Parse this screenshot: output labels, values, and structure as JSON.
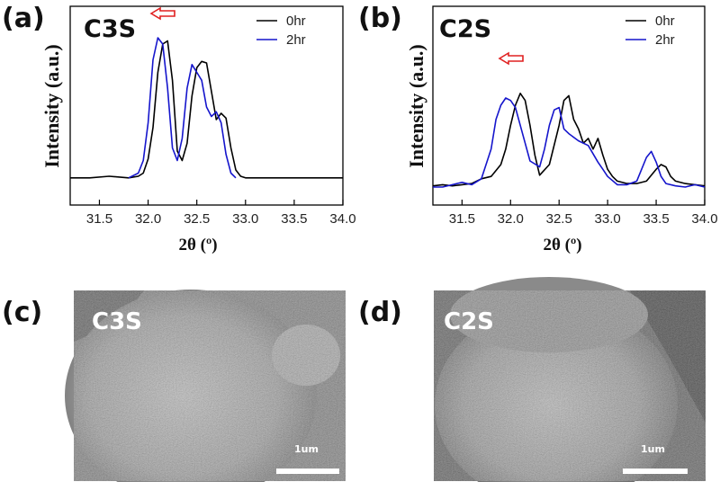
{
  "chart_data": [
    {
      "panel": "(a)",
      "type": "line",
      "title": "C3S",
      "xlabel": "2θ (º)",
      "ylabel": "Intensity (a.u.)",
      "xlim": [
        31.2,
        34.0
      ],
      "ylim": [
        0,
        100
      ],
      "xticks": [
        "31.5",
        "32.0",
        "32.5",
        "33.0",
        "33.5",
        "34.0"
      ],
      "legend": "top-right",
      "annotation": "left-arrow",
      "series": [
        {
          "name": "0hr",
          "color": "#000000",
          "x": [
            31.2,
            31.4,
            31.6,
            31.8,
            31.9,
            31.95,
            32.0,
            32.05,
            32.1,
            32.15,
            32.2,
            32.25,
            32.3,
            32.35,
            32.4,
            32.45,
            32.5,
            32.55,
            32.6,
            32.65,
            32.7,
            32.75,
            32.8,
            32.85,
            32.9,
            32.95,
            33.0,
            33.2,
            33.4,
            33.6,
            33.8,
            34.0
          ],
          "y": [
            3,
            3,
            4,
            3,
            4,
            6,
            15,
            35,
            70,
            88,
            90,
            65,
            20,
            14,
            25,
            55,
            73,
            77,
            76,
            58,
            40,
            44,
            41,
            22,
            8,
            4,
            3,
            3,
            3,
            3,
            3,
            3
          ]
        },
        {
          "name": "2hr",
          "color": "#1515cc",
          "x": [
            31.8,
            31.9,
            31.95,
            32.0,
            32.05,
            32.1,
            32.15,
            32.2,
            32.25,
            32.3,
            32.35,
            32.4,
            32.45,
            32.5,
            32.55,
            32.6,
            32.65,
            32.7,
            32.75,
            32.8,
            32.85,
            32.9
          ],
          "y": [
            3,
            6,
            14,
            38,
            78,
            92,
            88,
            60,
            22,
            14,
            28,
            60,
            75,
            70,
            65,
            48,
            42,
            45,
            38,
            18,
            6,
            3
          ]
        }
      ]
    },
    {
      "panel": "(b)",
      "type": "line",
      "title": "C2S",
      "xlabel": "2θ (º)",
      "ylabel": "Intensity (a.u.)",
      "xlim": [
        31.2,
        34.0
      ],
      "ylim": [
        0,
        100
      ],
      "xticks": [
        "31.5",
        "32.0",
        "32.5",
        "33.0",
        "33.5",
        "34.0"
      ],
      "legend": "top-right",
      "annotation": "left-arrow",
      "series": [
        {
          "name": "0hr",
          "color": "#000000",
          "x": [
            31.2,
            31.3,
            31.4,
            31.5,
            31.6,
            31.7,
            31.8,
            31.9,
            31.95,
            32.0,
            32.05,
            32.1,
            32.15,
            32.2,
            32.25,
            32.3,
            32.4,
            32.5,
            32.55,
            32.6,
            32.65,
            32.7,
            32.75,
            32.8,
            32.85,
            32.9,
            32.95,
            33.0,
            33.05,
            33.1,
            33.2,
            33.3,
            33.4,
            33.5,
            33.55,
            33.6,
            33.65,
            33.7,
            33.8,
            33.9,
            34.0
          ],
          "y": [
            4,
            5,
            4,
            5,
            6,
            10,
            12,
            22,
            35,
            55,
            72,
            82,
            76,
            55,
            30,
            13,
            22,
            55,
            76,
            80,
            60,
            52,
            40,
            44,
            35,
            44,
            30,
            18,
            12,
            8,
            6,
            6,
            8,
            18,
            22,
            20,
            12,
            8,
            6,
            5,
            4
          ]
        },
        {
          "name": "2hr",
          "color": "#1515cc",
          "x": [
            31.2,
            31.3,
            31.4,
            31.5,
            31.6,
            31.7,
            31.8,
            31.85,
            31.9,
            31.95,
            32.0,
            32.05,
            32.1,
            32.15,
            32.2,
            32.3,
            32.35,
            32.4,
            32.45,
            32.5,
            32.55,
            32.6,
            32.7,
            32.8,
            32.9,
            32.95,
            33.0,
            33.1,
            33.2,
            33.3,
            33.4,
            33.45,
            33.5,
            33.55,
            33.6,
            33.7,
            33.8,
            33.9,
            34.0
          ],
          "y": [
            3,
            3,
            5,
            7,
            5,
            10,
            35,
            60,
            72,
            78,
            76,
            70,
            55,
            40,
            25,
            20,
            35,
            55,
            68,
            70,
            52,
            48,
            42,
            38,
            24,
            18,
            12,
            5,
            5,
            8,
            28,
            33,
            24,
            12,
            6,
            4,
            3,
            5,
            3
          ]
        }
      ]
    }
  ],
  "panels": {
    "a": {
      "label": "(a)"
    },
    "b": {
      "label": "(b)"
    },
    "c": {
      "label": "(c)",
      "title": "C3S",
      "scale": "1um"
    },
    "d": {
      "label": "(d)",
      "title": "C2S",
      "scale": "1um"
    }
  },
  "colors": {
    "series_0hr": "#000000",
    "series_2hr": "#1515cc",
    "arrow": "#e02020"
  }
}
